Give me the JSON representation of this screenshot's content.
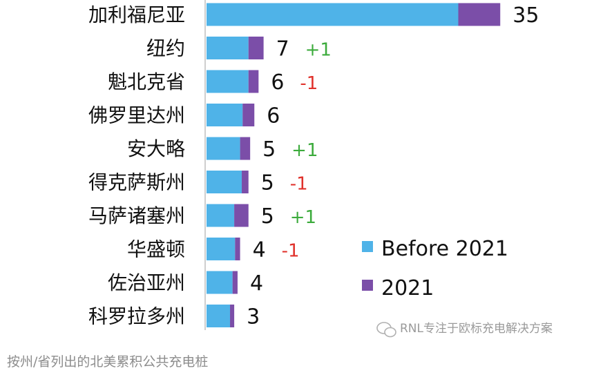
{
  "chart_data": {
    "type": "bar",
    "orientation": "horizontal",
    "stacked": true,
    "categories": [
      "加利福尼亚",
      "纽约",
      "魁北克省",
      "佛罗里达州",
      "安大略",
      "得克萨斯州",
      "马萨诸塞州",
      "华盛顿",
      "佐治亚州",
      "科罗拉多州"
    ],
    "series": [
      {
        "name": "Before 2021",
        "color": "#4fb3e8",
        "values": [
          30,
          5,
          5,
          4.3,
          4,
          4.2,
          3.3,
          3.4,
          3.1,
          2.8
        ]
      },
      {
        "name": "2021",
        "color": "#7b4ea8",
        "values": [
          5,
          1.8,
          1.2,
          1.4,
          1.2,
          0.8,
          1.7,
          0.6,
          0.6,
          0.5
        ]
      }
    ],
    "totals": [
      "35",
      "7",
      "6",
      "6",
      "5",
      "5",
      "5",
      "4",
      "4",
      "3"
    ],
    "changes": [
      "",
      "+1",
      "-1",
      "",
      "+1",
      "-1",
      "+1",
      "-1",
      "",
      ""
    ],
    "change_colors": {
      "positive": "#3cab3c",
      "negative": "#e0312b"
    },
    "legend_position": "bottom-right",
    "grid": false,
    "xlim": [
      0,
      35
    ]
  },
  "watermark": "RNL专注于欧标充电解决方案",
  "footnote": "按州/省列出的北美累积公共充电桩"
}
